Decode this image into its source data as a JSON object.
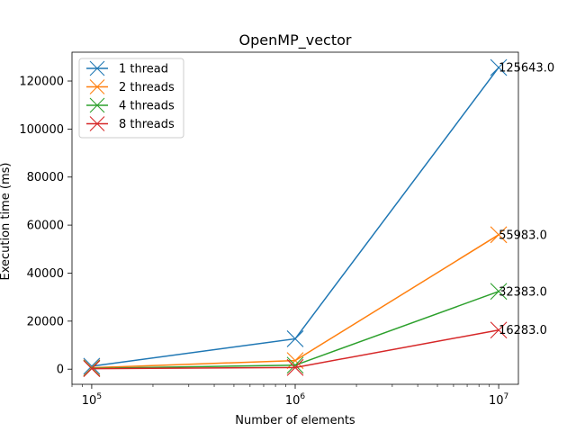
{
  "chart_data": {
    "type": "line",
    "title": "OpenMP_vector",
    "xlabel": "Number of elements",
    "ylabel": "Execution time (ms)",
    "xscale": "log",
    "xlim": [
      80000,
      12500000
    ],
    "ylim": [
      -6300,
      132000
    ],
    "x": [
      100000,
      1000000,
      10000000
    ],
    "x_tick_values": [
      100000,
      1000000,
      10000000
    ],
    "x_tick_labels": [
      {
        "base": "10",
        "exp": "5"
      },
      {
        "base": "10",
        "exp": "6"
      },
      {
        "base": "10",
        "exp": "7"
      }
    ],
    "y_ticks": [
      0,
      20000,
      40000,
      60000,
      80000,
      100000,
      120000
    ],
    "y_tick_labels": [
      "0",
      "20000",
      "40000",
      "60000",
      "80000",
      "100000",
      "120000"
    ],
    "grid": false,
    "legend_position": "top-left",
    "marker": "x",
    "series": [
      {
        "name": "1 thread",
        "color": "#1f77b4",
        "values": [
          1250,
          12650,
          125643
        ]
      },
      {
        "name": "2 threads",
        "color": "#ff7f0e",
        "values": [
          600,
          3600,
          55983
        ]
      },
      {
        "name": "4 threads",
        "color": "#2ca02c",
        "values": [
          350,
          1650,
          32383
        ]
      },
      {
        "name": "8 threads",
        "color": "#d62728",
        "values": [
          200,
          700,
          16283
        ]
      }
    ],
    "annotations": [
      {
        "x": 10000000,
        "y": 125643,
        "text": "125643.0"
      },
      {
        "x": 10000000,
        "y": 55983,
        "text": "55983.0"
      },
      {
        "x": 10000000,
        "y": 32383,
        "text": "32383.0"
      },
      {
        "x": 10000000,
        "y": 16283,
        "text": "16283.0"
      }
    ]
  }
}
